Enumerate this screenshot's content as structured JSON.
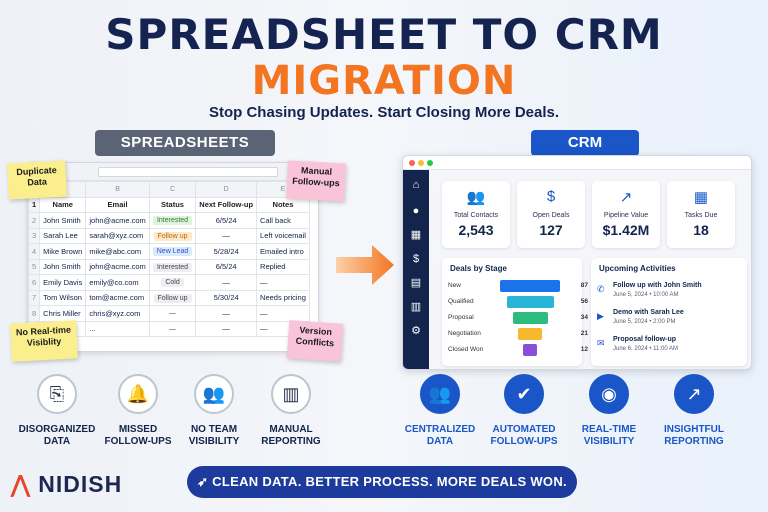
{
  "header": {
    "title_line1": "SPREADSHEET TO CRM",
    "title_line2": "MIGRATION",
    "subtitle": "Stop Chasing Updates. Start Closing More Deals."
  },
  "labels": {
    "spreadsheets": "SPREADSHEETS",
    "crm": "CRM"
  },
  "sheet": {
    "col_letters": [
      "",
      "A",
      "B",
      "C",
      "D",
      "E",
      "F"
    ],
    "headers": [
      "Name",
      "Email",
      "Status",
      "Next Follow-up",
      "Notes"
    ],
    "rows": [
      {
        "n": "2",
        "name": "John Smith",
        "email": "john@acme.com",
        "status": "Interested",
        "status_kind": "int",
        "date": "6/5/24",
        "notes": "Call back"
      },
      {
        "n": "3",
        "name": "Sarah Lee",
        "email": "sarah@xyz.com",
        "status": "Follow up",
        "status_kind": "fol",
        "date": "—",
        "notes": "Left voicemail"
      },
      {
        "n": "4",
        "name": "Mike Brown",
        "email": "mike@abc.com",
        "status": "New Lead",
        "status_kind": "new",
        "date": "5/28/24",
        "notes": "Emailed intro"
      },
      {
        "n": "5",
        "name": "John Smith",
        "email": "john@acme.com",
        "status": "Interested",
        "status_kind": "cold",
        "date": "6/5/24",
        "notes": "Replied"
      },
      {
        "n": "6",
        "name": "Emily Davis",
        "email": "emily@co.com",
        "status": "Cold",
        "status_kind": "cold",
        "date": "—",
        "notes": "—"
      },
      {
        "n": "7",
        "name": "Tom Wilson",
        "email": "tom@acme.com",
        "status": "Follow up",
        "status_kind": "cold",
        "date": "5/30/24",
        "notes": "Needs pricing"
      },
      {
        "n": "8",
        "name": "Chris Miller",
        "email": "chris@xyz.com",
        "status": "—",
        "status_kind": "plain",
        "date": "—",
        "notes": "—"
      },
      {
        "n": "9",
        "name": "...",
        "email": "...",
        "status": "—",
        "status_kind": "plain",
        "date": "—",
        "notes": "—"
      }
    ],
    "row1_number": "1"
  },
  "notes": {
    "duplicate": "Duplicate Data",
    "manual": "Manual Follow-ups",
    "norealtime": "No Real-time Visiblity",
    "version": "Version Conflicts"
  },
  "crm": {
    "stats": [
      {
        "label": "Total Contacts",
        "value": "2,543",
        "icon": "users-icon"
      },
      {
        "label": "Open Deals",
        "value": "127",
        "icon": "dollar-icon"
      },
      {
        "label": "Pipeline Value",
        "value": "$1.42M",
        "icon": "trend-icon"
      },
      {
        "label": "Tasks Due",
        "value": "18",
        "icon": "calendar-icon"
      }
    ],
    "deals_title": "Deals by Stage",
    "stages": [
      {
        "label": "New",
        "value": "87",
        "color": "#1a73e8",
        "fraction": 1.0
      },
      {
        "label": "Qualified",
        "value": "56",
        "color": "#29b6d6",
        "fraction": 0.78
      },
      {
        "label": "Proposal",
        "value": "34",
        "color": "#2dbb7f",
        "fraction": 0.58
      },
      {
        "label": "Negotiation",
        "value": "21",
        "color": "#f5b82e",
        "fraction": 0.4
      },
      {
        "label": "Closed Won",
        "value": "12",
        "color": "#8a4fd8",
        "fraction": 0.24
      }
    ],
    "activities_title": "Upcoming Activities",
    "activities": [
      {
        "title": "Follow up with John Smith",
        "date": "June 5, 2024  •  10:00 AM",
        "icon": "phone-icon"
      },
      {
        "title": "Demo with Sarah Lee",
        "date": "June 5, 2024  •  2:00 PM",
        "icon": "video-icon"
      },
      {
        "title": "Proposal follow-up",
        "date": "June 6, 2024  •  11:00 AM",
        "icon": "mail-icon"
      }
    ]
  },
  "problems": [
    {
      "label": "DISORGANIZED DATA",
      "icon": "file-search-icon"
    },
    {
      "label": "MISSED FOLLOW-UPS",
      "icon": "bell-x-icon"
    },
    {
      "label": "NO TEAM VISIBILITY",
      "icon": "team-icon"
    },
    {
      "label": "MANUAL REPORTING",
      "icon": "bar-chart-icon"
    }
  ],
  "benefits": [
    {
      "label": "CENTRALIZED DATA",
      "icon": "users-icon"
    },
    {
      "label": "AUTOMATED FOLLOW-UPS",
      "icon": "check-circle-icon"
    },
    {
      "label": "REAL-TIME VISIBILITY",
      "icon": "eye-icon"
    },
    {
      "label": "INSIGHTFUL REPORTING",
      "icon": "chart-up-icon"
    }
  ],
  "footer": {
    "logo": "NIDISH",
    "banner": "CLEAN DATA.  BETTER PROCESS.  MORE DEALS WON."
  }
}
